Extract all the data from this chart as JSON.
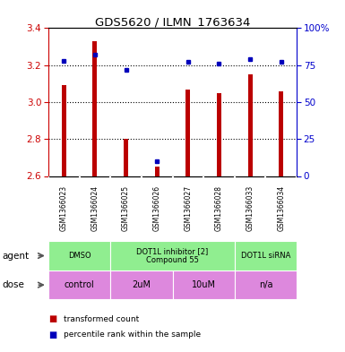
{
  "title": "GDS5620 / ILMN_1763634",
  "samples": [
    "GSM1366023",
    "GSM1366024",
    "GSM1366025",
    "GSM1366026",
    "GSM1366027",
    "GSM1366028",
    "GSM1366033",
    "GSM1366034"
  ],
  "red_values": [
    3.09,
    3.33,
    2.8,
    2.65,
    3.07,
    3.05,
    3.15,
    3.06
  ],
  "blue_values": [
    78,
    82,
    72,
    10,
    77,
    76,
    79,
    77
  ],
  "ylim": [
    2.6,
    3.4
  ],
  "y2lim": [
    0,
    100
  ],
  "yticks": [
    2.6,
    2.8,
    3.0,
    3.2,
    3.4
  ],
  "y2ticks": [
    0,
    25,
    50,
    75,
    100
  ],
  "bar_color": "#bb0000",
  "dot_color": "#0000bb",
  "bar_bottom": 2.6,
  "bar_width": 0.15,
  "agent_groups": [
    {
      "label": "DMSO",
      "start": 0,
      "end": 1,
      "color": "#90ee90"
    },
    {
      "label": "DOT1L inhibitor [2]\nCompound 55",
      "start": 2,
      "end": 5,
      "color": "#90ee90"
    },
    {
      "label": "DOT1L siRNA",
      "start": 6,
      "end": 7,
      "color": "#90ee90"
    }
  ],
  "dose_groups": [
    {
      "label": "control",
      "start": 0,
      "end": 1,
      "color": "#dd88dd"
    },
    {
      "label": "2uM",
      "start": 2,
      "end": 3,
      "color": "#dd88dd"
    },
    {
      "label": "10uM",
      "start": 4,
      "end": 5,
      "color": "#dd88dd"
    },
    {
      "label": "n/a",
      "start": 6,
      "end": 7,
      "color": "#dd88dd"
    }
  ],
  "agent_label": "agent",
  "dose_label": "dose",
  "legend_red": "transformed count",
  "legend_blue": "percentile rank within the sample",
  "background_color": "#ffffff",
  "tick_color_left": "#cc0000",
  "tick_color_right": "#0000cc",
  "sample_bg": "#cccccc",
  "grid_linestyle": ":",
  "grid_linewidth": 0.8
}
